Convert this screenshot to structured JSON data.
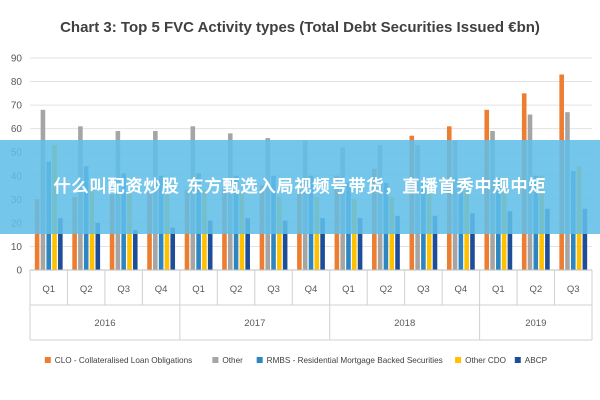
{
  "chart_data": {
    "type": "bar",
    "title": "Chart 3: Top 5 FVC Activity types (Total Debt Securities Issued €bn)",
    "xlabel": "",
    "ylabel": "",
    "ylim": [
      0,
      90
    ],
    "yticks": [
      0,
      10,
      20,
      30,
      40,
      50,
      60,
      70,
      80,
      90
    ],
    "grid": true,
    "legend_position": "bottom",
    "categories": [
      "Q1",
      "Q2",
      "Q3",
      "Q4",
      "Q1",
      "Q2",
      "Q3",
      "Q4",
      "Q1",
      "Q2",
      "Q3",
      "Q4",
      "Q1",
      "Q2",
      "Q3"
    ],
    "years": [
      {
        "label": "2016",
        "span": 4
      },
      {
        "label": "2017",
        "span": 4
      },
      {
        "label": "2018",
        "span": 4
      },
      {
        "label": "2019",
        "span": 3
      }
    ],
    "series": [
      {
        "name": "CLO - Collateralised Loan Obligations",
        "color": "#ed7d31",
        "values": [
          30,
          31,
          32,
          33,
          34,
          35,
          36,
          37,
          40,
          43,
          57,
          61,
          68,
          75,
          83
        ]
      },
      {
        "name": "Other",
        "color": "#a5a5a5",
        "values": [
          68,
          61,
          59,
          59,
          61,
          58,
          56,
          55,
          52,
          53,
          53,
          55,
          59,
          66,
          67
        ]
      },
      {
        "name": "RMBS - Residential Mortgage Backed Securities",
        "color": "#2e86c1",
        "values": [
          46,
          44,
          41,
          40,
          41,
          40,
          40,
          40,
          37,
          37,
          38,
          39,
          39,
          40,
          42
        ]
      },
      {
        "name": "Other CDO",
        "color": "#ffc000",
        "values": [
          53,
          36,
          33,
          32,
          34,
          33,
          31,
          31,
          30,
          31,
          33,
          34,
          36,
          40,
          44
        ]
      },
      {
        "name": "ABCP",
        "color": "#1f4e99",
        "values": [
          22,
          20,
          17,
          18,
          21,
          22,
          21,
          22,
          22,
          23,
          23,
          24,
          25,
          26,
          26
        ]
      }
    ]
  },
  "overlay": {
    "text": "什么叫配资炒股 东方甄选入局视频号带货，直播首秀中规中矩",
    "background": "#61bee8"
  }
}
